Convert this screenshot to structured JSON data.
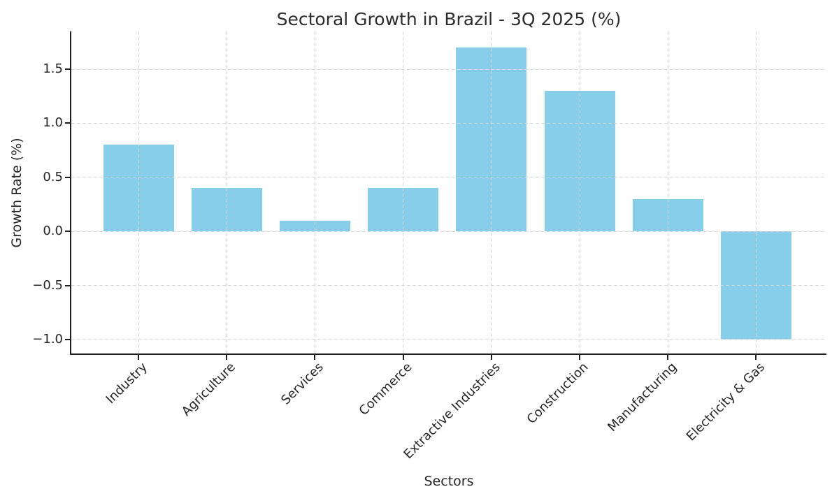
{
  "chart_data": {
    "type": "bar",
    "title": "Sectoral Growth in Brazil - 3Q 2025 (%)",
    "xlabel": "Sectors",
    "ylabel": "Growth Rate (%)",
    "categories": [
      "Industry",
      "Agriculture",
      "Services",
      "Commerce",
      "Extractive Industries",
      "Construction",
      "Manufacturing",
      "Electricity & Gas"
    ],
    "values": [
      0.8,
      0.4,
      0.1,
      0.4,
      1.7,
      1.3,
      0.3,
      -1.0
    ],
    "ylim": [
      -1.13,
      1.85
    ],
    "yticks": {
      "values": [
        1.5,
        1.0,
        0.5,
        0.0,
        -0.5,
        -1.0
      ],
      "labels": [
        "1.5",
        "1.0",
        "0.5",
        "0.0",
        "−0.5",
        "−1.0"
      ]
    },
    "bar_color": "#87CEEB",
    "grid": "dashed, both axes, drawn above bars",
    "grid_color": "#d8d8d8",
    "spine_color": "#1f1f1f",
    "text_color": "#262626",
    "background_color": "#ffffff",
    "legend": "none",
    "xtick_rotation_deg": 45
  }
}
